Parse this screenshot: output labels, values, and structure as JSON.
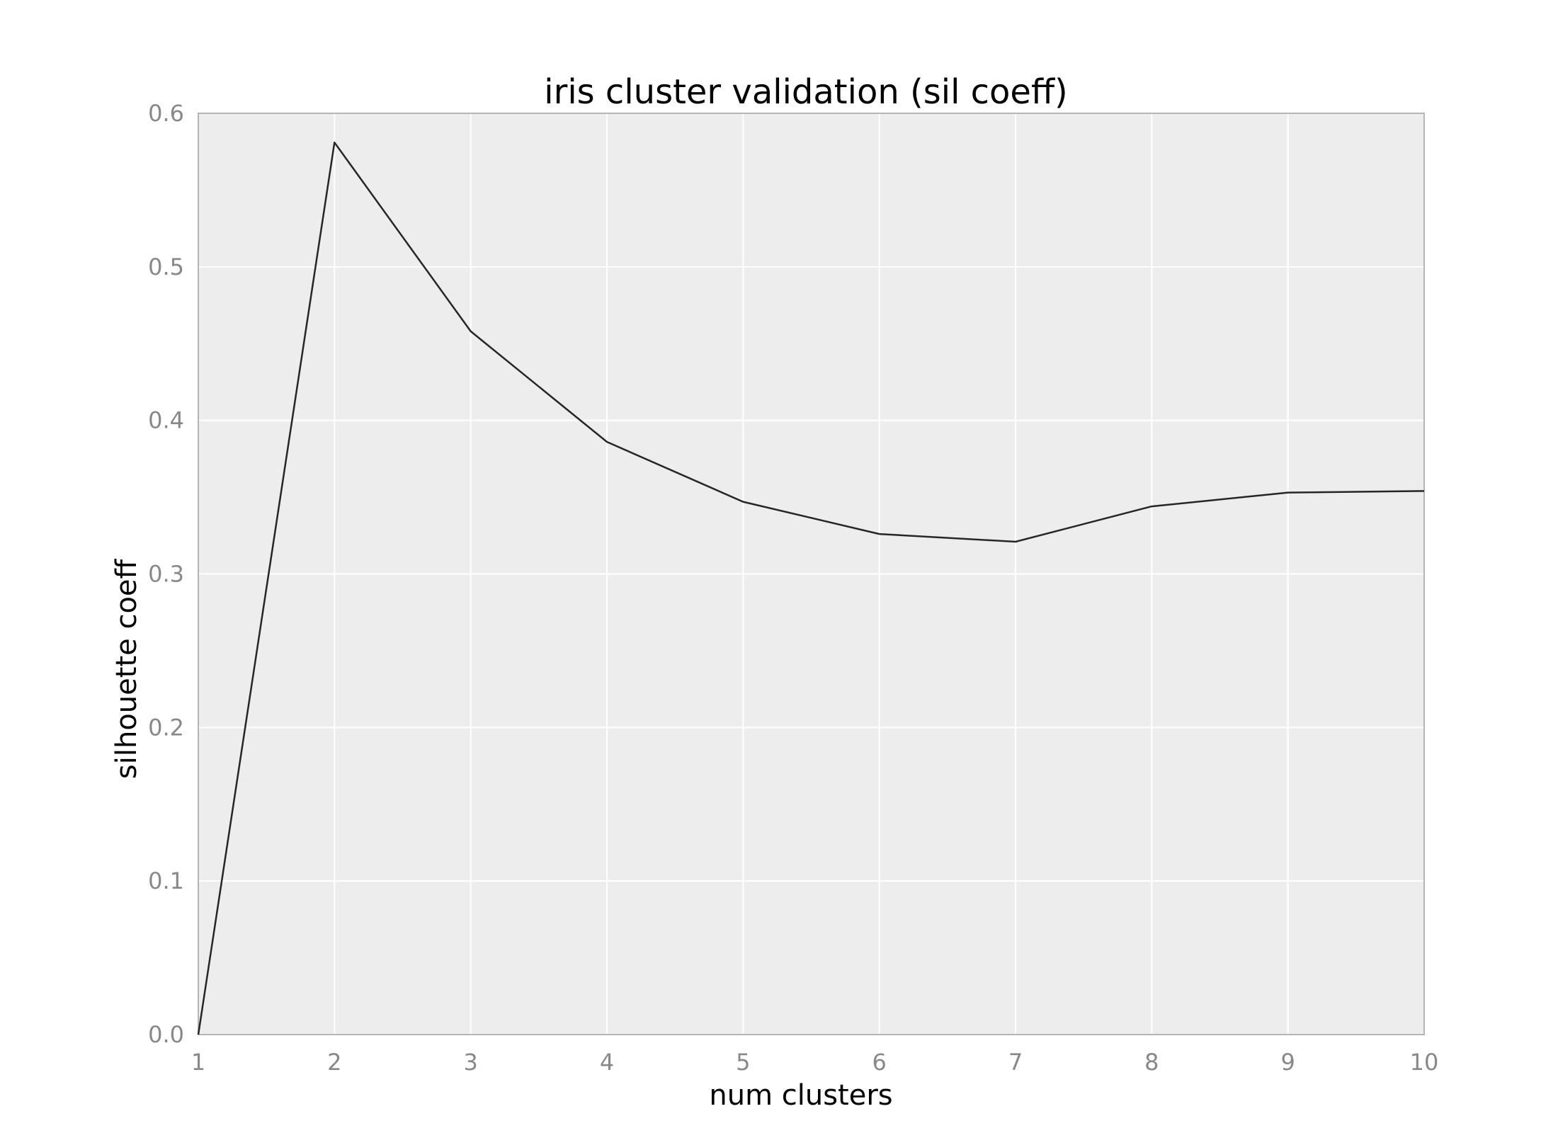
{
  "chart_data": {
    "type": "line",
    "title": "iris cluster validation (sil coeff)",
    "xlabel": "num clusters",
    "ylabel": "silhouette coeff",
    "x": [
      1,
      2,
      3,
      4,
      5,
      6,
      7,
      8,
      9,
      10
    ],
    "x_ticks": [
      "1",
      "2",
      "3",
      "4",
      "5",
      "6",
      "7",
      "8",
      "9",
      "10"
    ],
    "y_ticks": [
      "0.0",
      "0.1",
      "0.2",
      "0.3",
      "0.4",
      "0.5",
      "0.6"
    ],
    "xlim": [
      1,
      10
    ],
    "ylim": [
      0,
      0.6
    ],
    "grid": true,
    "legend": "none",
    "series": [
      {
        "values": [
          0.0,
          0.581,
          0.458,
          0.386,
          0.347,
          0.326,
          0.321,
          0.344,
          0.353,
          0.354
        ]
      }
    ],
    "colors": {
      "background": "#ededed",
      "grid": "#ffffff",
      "frame": "#b5b5b5",
      "line": "#262626"
    }
  }
}
